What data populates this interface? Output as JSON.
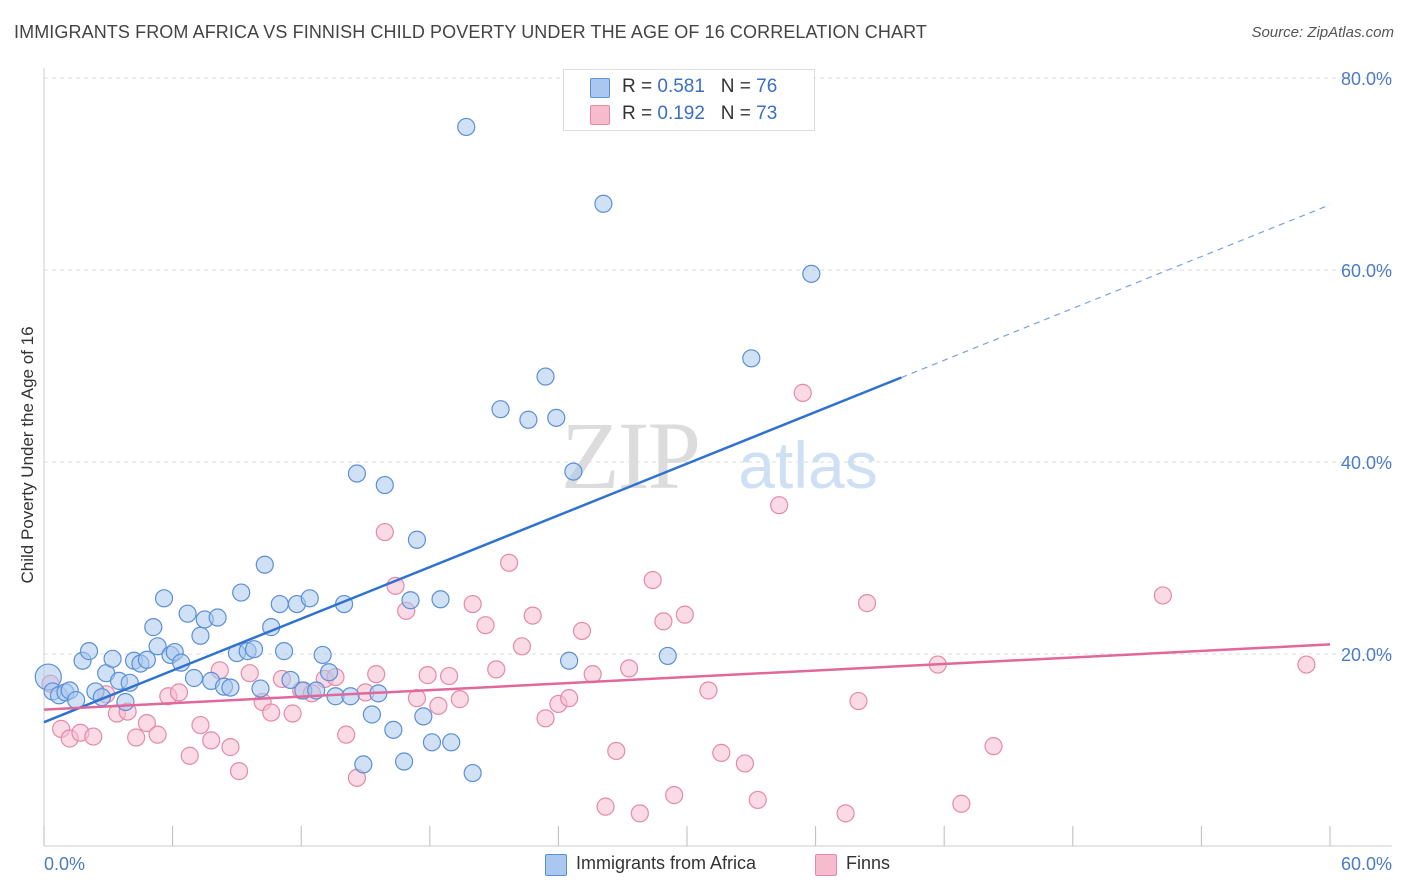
{
  "title": "IMMIGRANTS FROM AFRICA VS FINNISH CHILD POVERTY UNDER THE AGE OF 16 CORRELATION CHART",
  "source": "Source: ZipAtlas.com",
  "watermark_zip": "ZIP",
  "watermark_atlas": "atlas",
  "legend": {
    "rows": [
      {
        "r_label": "R =",
        "r_value": "0.581",
        "n_label": "N =",
        "n_value": "76"
      },
      {
        "r_label": "R =",
        "r_value": "0.192",
        "n_label": "N =",
        "n_value": "73"
      }
    ]
  },
  "colors": {
    "blue_fill": "#aac8ef",
    "blue_stroke": "#5b8fd6",
    "blue_line": "#2f72cf",
    "pink_fill": "#f6bccd",
    "pink_stroke": "#e48aa8",
    "pink_line": "#e0689a",
    "grid": "#dddddd",
    "axis_text": "#4a7cc7"
  },
  "chart_data": {
    "type": "scatter",
    "xlabel": "",
    "ylabel": "Child Poverty Under the Age of 16",
    "xlim": [
      0,
      60
    ],
    "ylim": [
      0,
      80
    ],
    "x_tick_labels": [
      "0.0%",
      "60.0%"
    ],
    "y_tick_labels": [
      "20.0%",
      "40.0%",
      "60.0%",
      "80.0%"
    ],
    "y_tick_values": [
      20,
      40,
      60,
      80
    ],
    "grid": true,
    "legend_placement": "top-center",
    "series": [
      {
        "name": "Immigrants from Africa",
        "color": "#5b8fd6",
        "trendline": {
          "x": [
            0,
            40
          ],
          "y": [
            12.9,
            48.8
          ],
          "dashed_to": {
            "x": 60,
            "y": 66.8
          }
        },
        "points": [
          {
            "x": 0.2,
            "y": 17.6
          },
          {
            "x": 0.4,
            "y": 16.1
          },
          {
            "x": 0.7,
            "y": 15.7
          },
          {
            "x": 1.0,
            "y": 16.0
          },
          {
            "x": 1.2,
            "y": 16.2
          },
          {
            "x": 1.5,
            "y": 15.2
          },
          {
            "x": 1.8,
            "y": 19.3
          },
          {
            "x": 2.1,
            "y": 20.3
          },
          {
            "x": 2.4,
            "y": 16.1
          },
          {
            "x": 2.7,
            "y": 15.5
          },
          {
            "x": 2.9,
            "y": 18.0
          },
          {
            "x": 3.2,
            "y": 19.5
          },
          {
            "x": 3.5,
            "y": 17.2
          },
          {
            "x": 3.8,
            "y": 15.0
          },
          {
            "x": 4.0,
            "y": 17.0
          },
          {
            "x": 4.2,
            "y": 19.3
          },
          {
            "x": 4.5,
            "y": 19.0
          },
          {
            "x": 4.8,
            "y": 19.4
          },
          {
            "x": 5.1,
            "y": 22.8
          },
          {
            "x": 5.3,
            "y": 20.8
          },
          {
            "x": 5.6,
            "y": 25.8
          },
          {
            "x": 5.9,
            "y": 19.9
          },
          {
            "x": 6.1,
            "y": 20.2
          },
          {
            "x": 6.4,
            "y": 19.1
          },
          {
            "x": 6.7,
            "y": 24.2
          },
          {
            "x": 7.0,
            "y": 17.5
          },
          {
            "x": 7.3,
            "y": 21.9
          },
          {
            "x": 7.5,
            "y": 23.6
          },
          {
            "x": 7.8,
            "y": 17.2
          },
          {
            "x": 8.1,
            "y": 23.8
          },
          {
            "x": 8.4,
            "y": 16.6
          },
          {
            "x": 8.7,
            "y": 16.5
          },
          {
            "x": 9.0,
            "y": 20.1
          },
          {
            "x": 9.2,
            "y": 26.4
          },
          {
            "x": 9.5,
            "y": 20.3
          },
          {
            "x": 9.8,
            "y": 20.5
          },
          {
            "x": 10.1,
            "y": 16.4
          },
          {
            "x": 10.3,
            "y": 29.3
          },
          {
            "x": 10.6,
            "y": 22.8
          },
          {
            "x": 11.0,
            "y": 25.2
          },
          {
            "x": 11.2,
            "y": 20.3
          },
          {
            "x": 11.5,
            "y": 17.3
          },
          {
            "x": 11.8,
            "y": 25.2
          },
          {
            "x": 12.1,
            "y": 16.2
          },
          {
            "x": 12.4,
            "y": 25.8
          },
          {
            "x": 12.7,
            "y": 16.2
          },
          {
            "x": 13.0,
            "y": 19.9
          },
          {
            "x": 13.3,
            "y": 18.1
          },
          {
            "x": 13.6,
            "y": 15.6
          },
          {
            "x": 14.0,
            "y": 25.2
          },
          {
            "x": 14.3,
            "y": 15.6
          },
          {
            "x": 14.6,
            "y": 38.8
          },
          {
            "x": 14.9,
            "y": 8.5
          },
          {
            "x": 15.3,
            "y": 13.7
          },
          {
            "x": 15.6,
            "y": 15.9
          },
          {
            "x": 15.9,
            "y": 37.6
          },
          {
            "x": 16.3,
            "y": 12.1
          },
          {
            "x": 16.8,
            "y": 8.8
          },
          {
            "x": 17.1,
            "y": 25.6
          },
          {
            "x": 17.4,
            "y": 31.9
          },
          {
            "x": 17.7,
            "y": 13.5
          },
          {
            "x": 18.1,
            "y": 10.8
          },
          {
            "x": 18.5,
            "y": 25.7
          },
          {
            "x": 19.0,
            "y": 10.8
          },
          {
            "x": 19.7,
            "y": 74.9
          },
          {
            "x": 20.0,
            "y": 7.6
          },
          {
            "x": 21.3,
            "y": 45.5
          },
          {
            "x": 22.6,
            "y": 44.4
          },
          {
            "x": 23.4,
            "y": 48.9
          },
          {
            "x": 23.9,
            "y": 44.6
          },
          {
            "x": 24.5,
            "y": 19.3
          },
          {
            "x": 24.7,
            "y": 39.0
          },
          {
            "x": 26.1,
            "y": 66.9
          },
          {
            "x": 29.1,
            "y": 19.8
          },
          {
            "x": 33.0,
            "y": 50.8
          },
          {
            "x": 35.8,
            "y": 59.6
          }
        ]
      },
      {
        "name": "Finns",
        "color": "#e48aa8",
        "trendline": {
          "x": [
            0,
            60
          ],
          "y": [
            14.2,
            21.0
          ]
        },
        "points": [
          {
            "x": 0.3,
            "y": 16.9
          },
          {
            "x": 0.8,
            "y": 12.2
          },
          {
            "x": 1.2,
            "y": 11.2
          },
          {
            "x": 1.7,
            "y": 11.8
          },
          {
            "x": 2.3,
            "y": 11.4
          },
          {
            "x": 2.9,
            "y": 15.8
          },
          {
            "x": 3.4,
            "y": 13.8
          },
          {
            "x": 3.9,
            "y": 14.0
          },
          {
            "x": 4.3,
            "y": 11.3
          },
          {
            "x": 4.8,
            "y": 12.8
          },
          {
            "x": 5.3,
            "y": 11.6
          },
          {
            "x": 5.8,
            "y": 15.6
          },
          {
            "x": 6.3,
            "y": 16.0
          },
          {
            "x": 6.8,
            "y": 9.4
          },
          {
            "x": 7.3,
            "y": 12.6
          },
          {
            "x": 7.8,
            "y": 11.0
          },
          {
            "x": 8.2,
            "y": 18.3
          },
          {
            "x": 8.7,
            "y": 10.3
          },
          {
            "x": 9.1,
            "y": 7.8
          },
          {
            "x": 9.6,
            "y": 18.0
          },
          {
            "x": 10.2,
            "y": 15.0
          },
          {
            "x": 10.6,
            "y": 13.9
          },
          {
            "x": 11.1,
            "y": 17.4
          },
          {
            "x": 11.6,
            "y": 13.8
          },
          {
            "x": 12.0,
            "y": 16.2
          },
          {
            "x": 12.5,
            "y": 15.9
          },
          {
            "x": 13.1,
            "y": 17.4
          },
          {
            "x": 13.6,
            "y": 17.6
          },
          {
            "x": 14.1,
            "y": 11.6
          },
          {
            "x": 14.6,
            "y": 7.1
          },
          {
            "x": 15.0,
            "y": 16.0
          },
          {
            "x": 15.5,
            "y": 17.9
          },
          {
            "x": 15.9,
            "y": 32.7
          },
          {
            "x": 16.4,
            "y": 27.1
          },
          {
            "x": 16.9,
            "y": 24.5
          },
          {
            "x": 17.4,
            "y": 15.4
          },
          {
            "x": 17.9,
            "y": 17.8
          },
          {
            "x": 18.4,
            "y": 14.6
          },
          {
            "x": 18.9,
            "y": 17.7
          },
          {
            "x": 19.4,
            "y": 15.3
          },
          {
            "x": 20.0,
            "y": 25.2
          },
          {
            "x": 20.6,
            "y": 23.0
          },
          {
            "x": 21.1,
            "y": 18.4
          },
          {
            "x": 21.7,
            "y": 29.5
          },
          {
            "x": 22.3,
            "y": 20.8
          },
          {
            "x": 22.8,
            "y": 24.0
          },
          {
            "x": 23.4,
            "y": 13.3
          },
          {
            "x": 24.0,
            "y": 14.8
          },
          {
            "x": 24.5,
            "y": 15.4
          },
          {
            "x": 25.1,
            "y": 22.4
          },
          {
            "x": 25.6,
            "y": 17.9
          },
          {
            "x": 26.2,
            "y": 4.1
          },
          {
            "x": 26.7,
            "y": 9.9
          },
          {
            "x": 27.3,
            "y": 18.5
          },
          {
            "x": 27.8,
            "y": 3.4
          },
          {
            "x": 28.4,
            "y": 27.7
          },
          {
            "x": 28.9,
            "y": 23.4
          },
          {
            "x": 29.4,
            "y": 5.3
          },
          {
            "x": 29.9,
            "y": 24.1
          },
          {
            "x": 31.0,
            "y": 16.2
          },
          {
            "x": 31.6,
            "y": 9.7
          },
          {
            "x": 32.7,
            "y": 8.6
          },
          {
            "x": 33.3,
            "y": 4.8
          },
          {
            "x": 34.3,
            "y": 35.5
          },
          {
            "x": 35.4,
            "y": 47.2
          },
          {
            "x": 37.4,
            "y": 3.4
          },
          {
            "x": 38.0,
            "y": 15.1
          },
          {
            "x": 38.4,
            "y": 25.3
          },
          {
            "x": 41.7,
            "y": 18.9
          },
          {
            "x": 42.8,
            "y": 4.4
          },
          {
            "x": 44.3,
            "y": 10.4
          },
          {
            "x": 52.2,
            "y": 26.1
          },
          {
            "x": 58.9,
            "y": 18.9
          }
        ]
      }
    ]
  }
}
